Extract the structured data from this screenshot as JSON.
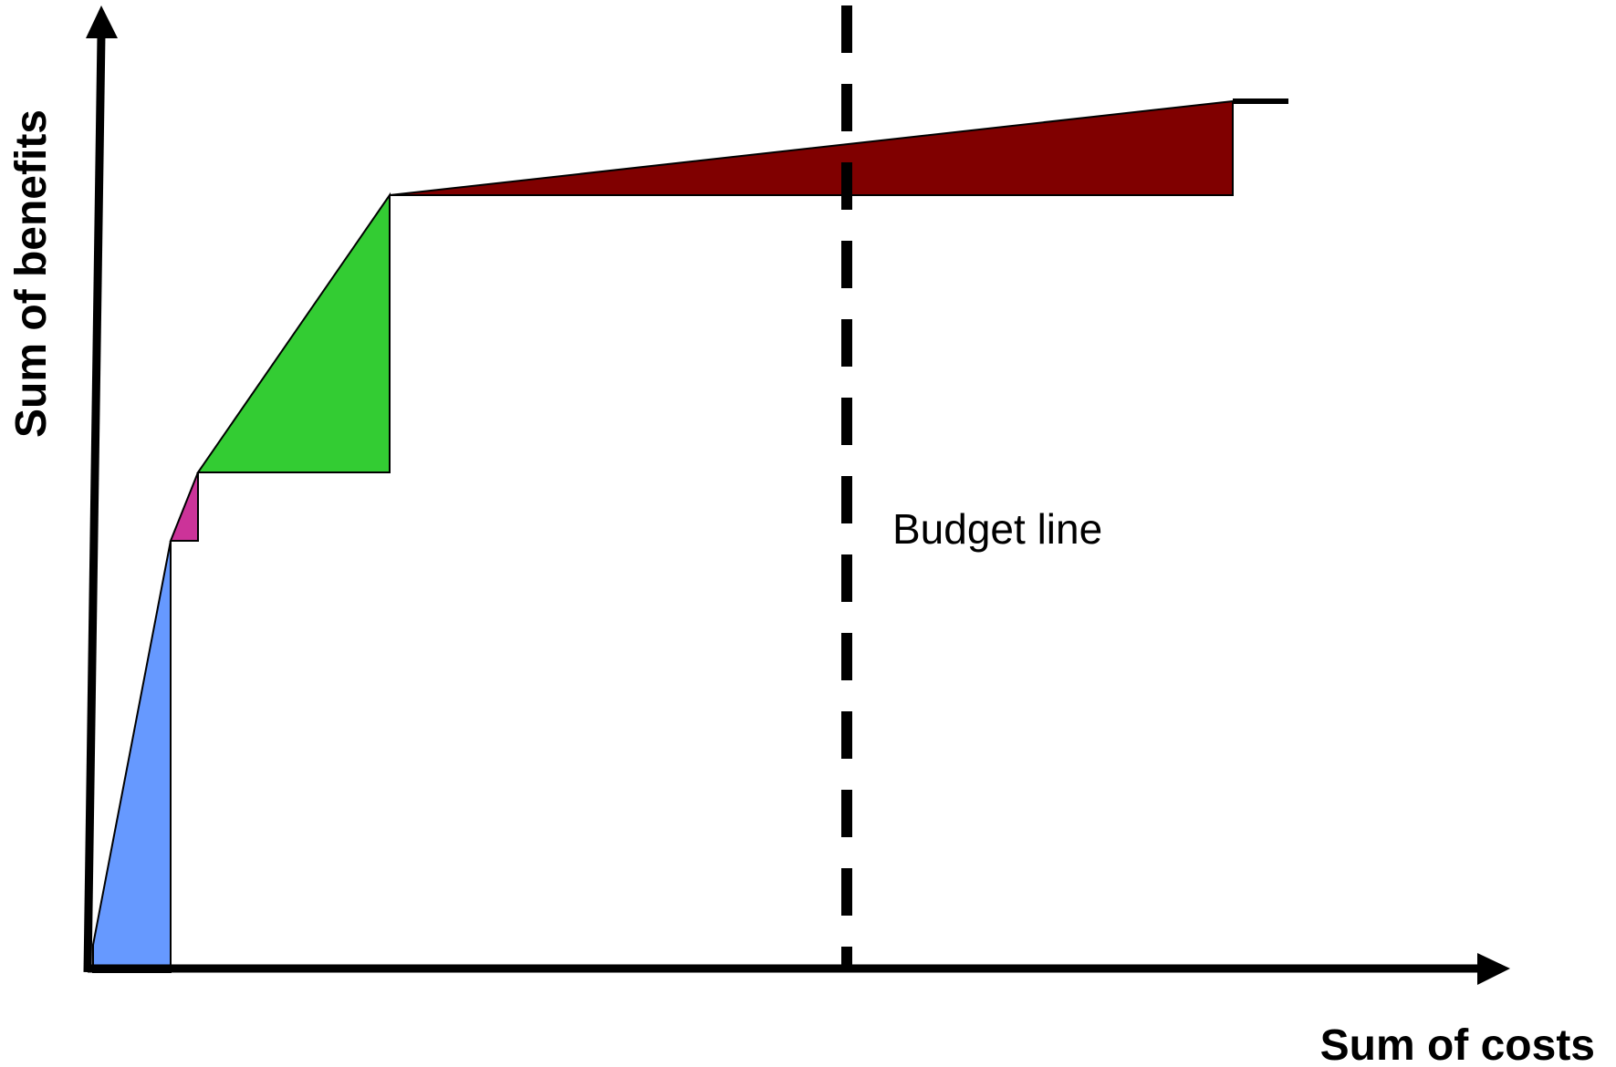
{
  "diagram": {
    "x_axis_title": "Sum of costs",
    "y_axis_title": "Sum of benefits",
    "budget_line_label": "Budget line",
    "colors": {
      "axis": "#000000",
      "segment_1": "#6699FF",
      "segment_2": "#CC3399",
      "segment_3": "#33CC33",
      "segment_4": "#800000",
      "background": "#FFFFFF"
    }
  }
}
